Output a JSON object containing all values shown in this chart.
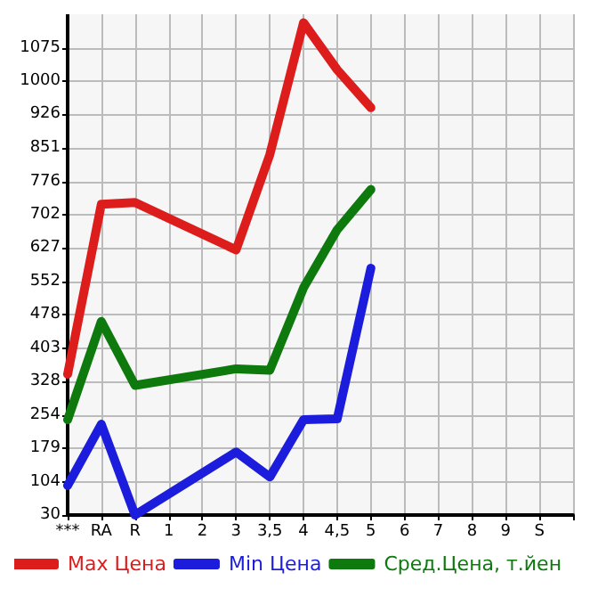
{
  "chart_data": {
    "type": "line",
    "categories": [
      "***",
      "RA",
      "R",
      "1",
      "2",
      "3",
      "3,5",
      "4",
      "4,5",
      "5",
      "6",
      "7",
      "8",
      "9",
      "S",
      null
    ],
    "series": [
      {
        "name": "Max Цена",
        "color": "#dd1c1c",
        "values": [
          345,
          725,
          729,
          null,
          null,
          623,
          836,
          1131,
          1026,
          941,
          null,
          null,
          null,
          null,
          null,
          null
        ]
      },
      {
        "name": "Min Цена",
        "color": "#1c1cdd",
        "values": [
          96,
          233,
          30,
          null,
          null,
          171,
          115,
          243,
          245,
          582,
          null,
          null,
          null,
          null,
          null,
          null
        ]
      },
      {
        "name": "Сред.Цена, т.йен",
        "color": "#0e7a0e",
        "values": [
          243,
          463,
          320,
          null,
          null,
          357,
          354,
          538,
          668,
          758,
          null,
          null,
          null,
          null,
          null,
          null
        ]
      }
    ],
    "ylim": [
      30,
      1150
    ],
    "yticks": [
      30,
      104,
      179,
      254,
      328,
      403,
      478,
      552,
      627,
      702,
      776,
      851,
      926,
      1000,
      1075
    ],
    "grid": true,
    "legend": "bottom left",
    "marker": "none",
    "line_style": "solid"
  }
}
